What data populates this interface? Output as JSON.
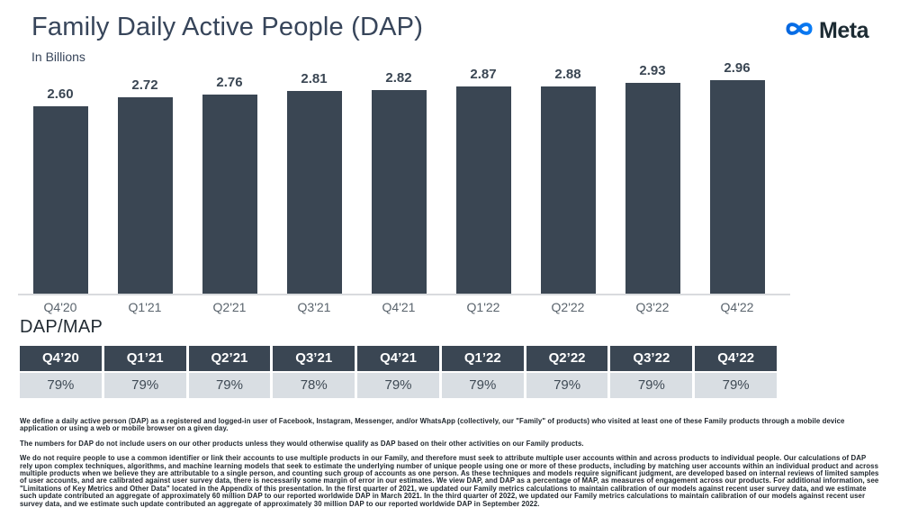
{
  "header": {
    "title": "Family Daily Active People (DAP)",
    "subtitle": "In Billions",
    "logo_text": "Meta",
    "logo_blue": "#0668E1",
    "logo_text_color": "#1c2b33"
  },
  "chart_data": {
    "type": "bar",
    "title": "Family Daily Active People (DAP)",
    "ylabel": "In Billions",
    "categories": [
      "Q4'20",
      "Q1'21",
      "Q2'21",
      "Q3'21",
      "Q4'21",
      "Q1'22",
      "Q2'22",
      "Q3'22",
      "Q4'22"
    ],
    "values": [
      2.6,
      2.72,
      2.76,
      2.81,
      2.82,
      2.87,
      2.88,
      2.93,
      2.96
    ],
    "value_labels": [
      "2.60",
      "2.72",
      "2.76",
      "2.81",
      "2.82",
      "2.87",
      "2.88",
      "2.93",
      "2.96"
    ],
    "ylim": [
      0,
      3.0
    ],
    "grid": false,
    "legend": false,
    "data_labels_position": "above-bar",
    "bar_color": "#3a4653"
  },
  "table": {
    "title": "DAP/MAP",
    "columns": [
      "Q4’20",
      "Q1’21",
      "Q2’21",
      "Q3’21",
      "Q4’21",
      "Q1’22",
      "Q2’22",
      "Q3’22",
      "Q4’22"
    ],
    "values": [
      "79%",
      "79%",
      "79%",
      "78%",
      "79%",
      "79%",
      "79%",
      "79%",
      "79%"
    ],
    "header_bg": "#3a4653",
    "row_bg": "#d9dee3"
  },
  "footnotes": [
    "We define a daily active person (DAP) as a registered and logged-in user of Facebook, Instagram, Messenger, and/or WhatsApp (collectively, our \"Family\" of products) who visited at least one of these Family products through a mobile device application or using a web or mobile browser on a given day.",
    "The numbers for DAP do not include users on our other products unless they would otherwise qualify as DAP based on their other activities on our Family products.",
    "We do not require people to use a common identifier or link their accounts to use multiple products in our Family, and therefore must seek to attribute multiple user accounts within and across products to individual people. Our calculations of DAP rely upon complex techniques, algorithms, and machine learning models that seek to estimate the underlying number of unique people using one or more of these products, including by matching user accounts within an individual product and across multiple products when we believe they are attributable to a single person, and counting such group of accounts as one person. As these techniques and models require significant judgment, are developed based on internal reviews of limited samples of user accounts, and are calibrated against user survey data, there is necessarily some margin of error in our estimates. We view DAP, and DAP as a percentage of MAP, as measures of engagement across our products. For additional information, see \"Limitations of Key Metrics and Other Data\" located in the Appendix of this presentation. In the first quarter of 2021, we updated our Family metrics calculations to maintain calibration of our models against recent user survey data, and we estimate such update contributed an aggregate of approximately 60 million DAP to our reported worldwide DAP in March 2021. In the third quarter of 2022, we updated our Family metrics calculations to maintain calibration of our models against recent user survey data, and we estimate such update contributed an aggregate of approximately 30 million DAP to our reported worldwide DAP in September 2022."
  ]
}
